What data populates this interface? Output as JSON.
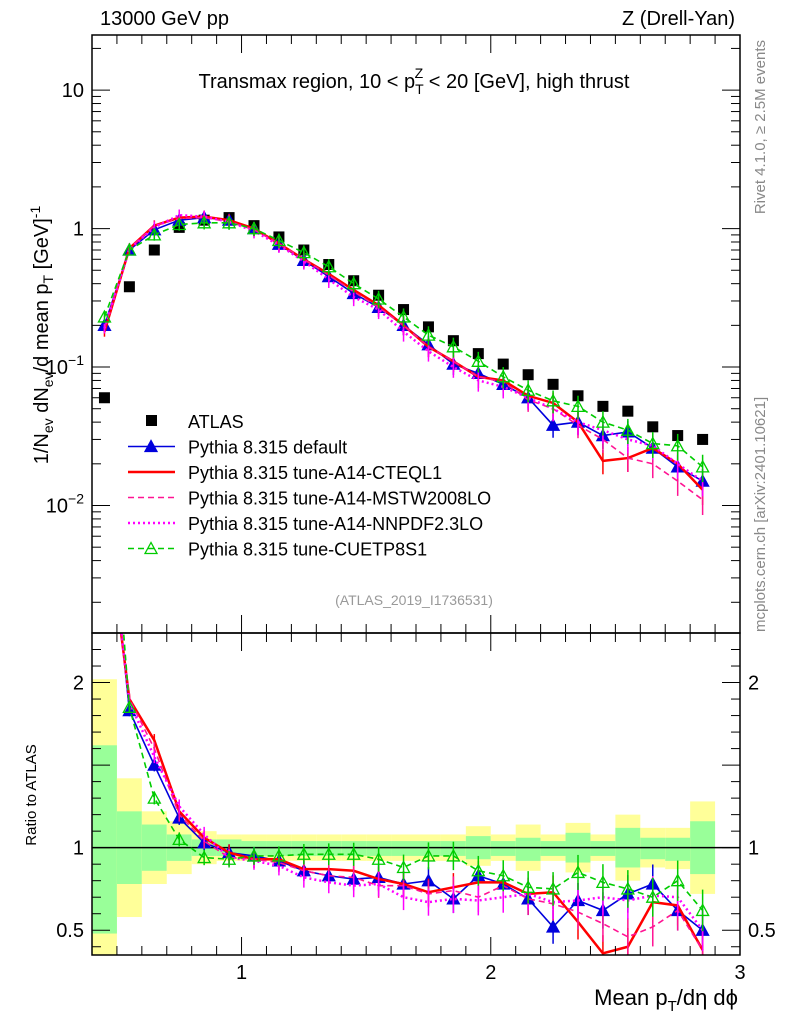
{
  "header": {
    "left": "13000 GeV pp",
    "right": "Z (Drell-Yan)"
  },
  "side_labels": {
    "rivet": "Rivet 4.1.0, ≥ 2.5M events",
    "mcplots": "mcplots.cern.ch [arXiv:2401.10621]"
  },
  "chart_data": [
    {
      "type": "line",
      "panel": "main",
      "title": "Transmax region, 10 < p_T^Z < 20 [GeV], high thrust",
      "ylabel": "1/N_ev dN_ev/d mean p_T [GeV]^-1",
      "xlabel": "",
      "yscale": "log",
      "ylim": [
        0.0012,
        25
      ],
      "xlim": [
        0.4,
        3.0
      ],
      "yticks": [
        {
          "v": 0.01,
          "label": "10^-2"
        },
        {
          "v": 0.1,
          "label": "10^-1"
        },
        {
          "v": 1,
          "label": "1"
        },
        {
          "v": 10,
          "label": "10"
        }
      ],
      "analysis_tag": "(ATLAS_2019_I1736531)",
      "legend_position": "bottom-left",
      "x": [
        0.45,
        0.55,
        0.65,
        0.75,
        0.85,
        0.95,
        1.05,
        1.15,
        1.25,
        1.35,
        1.45,
        1.55,
        1.65,
        1.75,
        1.85,
        1.95,
        2.05,
        2.15,
        2.25,
        2.35,
        2.45,
        2.55,
        2.65,
        2.75,
        2.85
      ],
      "series": [
        {
          "name": "ATLAS",
          "color": "#000000",
          "style": "square",
          "values": [
            0.06,
            0.38,
            0.7,
            1.02,
            1.15,
            1.2,
            1.05,
            0.87,
            0.7,
            0.55,
            0.42,
            0.33,
            0.26,
            0.195,
            0.155,
            0.125,
            0.105,
            0.088,
            0.075,
            0.062,
            0.052,
            0.048,
            0.037,
            0.032,
            0.03
          ]
        },
        {
          "name": "Pythia 8.315 default",
          "color": "#0000dd",
          "style": "solid-triangle",
          "values": [
            0.2,
            0.7,
            0.98,
            1.15,
            1.2,
            1.15,
            1.0,
            0.77,
            0.59,
            0.45,
            0.34,
            0.27,
            0.2,
            0.145,
            0.105,
            0.09,
            0.075,
            0.06,
            0.038,
            0.04,
            0.032,
            0.034,
            0.026,
            0.019,
            0.015
          ]
        },
        {
          "name": "Pythia 8.315 tune-A14-CTEQL1",
          "color": "#ff0000",
          "style": "solid",
          "values": [
            0.18,
            0.72,
            1.05,
            1.2,
            1.22,
            1.15,
            1.0,
            0.78,
            0.6,
            0.47,
            0.36,
            0.28,
            0.2,
            0.14,
            0.11,
            0.085,
            0.08,
            0.062,
            0.055,
            0.04,
            0.021,
            0.022,
            0.026,
            0.02,
            0.013
          ]
        },
        {
          "name": "Pythia 8.315 tune-A14-MSTW2008LO",
          "color": "#ff1493",
          "style": "dashed",
          "values": [
            0.19,
            0.72,
            1.05,
            1.18,
            1.2,
            1.12,
            0.98,
            0.78,
            0.6,
            0.46,
            0.35,
            0.27,
            0.2,
            0.14,
            0.11,
            0.085,
            0.078,
            0.058,
            0.05,
            0.038,
            0.03,
            0.022,
            0.02,
            0.015,
            0.011
          ]
        },
        {
          "name": "Pythia 8.315 tune-A14-NNPDF2.3LO",
          "color": "#ff00ff",
          "style": "dotted",
          "values": [
            0.19,
            0.71,
            1.02,
            1.25,
            1.22,
            1.12,
            0.96,
            0.76,
            0.58,
            0.43,
            0.32,
            0.26,
            0.18,
            0.13,
            0.1,
            0.08,
            0.072,
            0.06,
            0.05,
            0.04,
            0.035,
            0.03,
            0.027,
            0.02,
            0.015
          ]
        },
        {
          "name": "Pythia 8.315 tune-CUETP8S1",
          "color": "#00cc00",
          "style": "dashed-open-triangle",
          "values": [
            0.23,
            0.7,
            0.9,
            1.07,
            1.1,
            1.1,
            1.0,
            0.82,
            0.67,
            0.53,
            0.4,
            0.31,
            0.23,
            0.17,
            0.14,
            0.11,
            0.085,
            0.068,
            0.057,
            0.052,
            0.04,
            0.035,
            0.028,
            0.027,
            0.019
          ]
        }
      ]
    },
    {
      "type": "line",
      "panel": "ratio",
      "ylabel": "Ratio to ATLAS",
      "xlabel": "Mean p_T/dη dφ",
      "ylim": [
        0.35,
        2.3
      ],
      "xlim": [
        0.4,
        3.0
      ],
      "yticks": [
        {
          "v": 0.5,
          "label": "0.5"
        },
        {
          "v": 1,
          "label": "1"
        },
        {
          "v": 2,
          "label": "2"
        }
      ],
      "xticks": [
        {
          "v": 1,
          "label": "1"
        },
        {
          "v": 2,
          "label": "2"
        },
        {
          "v": 3,
          "label": "3"
        }
      ],
      "x": [
        0.45,
        0.55,
        0.65,
        0.75,
        0.85,
        0.95,
        1.05,
        1.15,
        1.25,
        1.35,
        1.45,
        1.55,
        1.65,
        1.75,
        1.85,
        1.95,
        2.05,
        2.15,
        2.25,
        2.35,
        2.45,
        2.55,
        2.65,
        2.75,
        2.85
      ],
      "band_stat": [
        [
          0.48,
          1.62
        ],
        [
          0.78,
          1.22
        ],
        [
          0.86,
          1.14
        ],
        [
          0.92,
          1.08
        ],
        [
          0.95,
          1.05
        ],
        [
          0.95,
          1.05
        ],
        [
          0.95,
          1.04
        ],
        [
          0.95,
          1.04
        ],
        [
          0.95,
          1.04
        ],
        [
          0.95,
          1.04
        ],
        [
          0.95,
          1.04
        ],
        [
          0.95,
          1.04
        ],
        [
          0.95,
          1.04
        ],
        [
          0.95,
          1.04
        ],
        [
          0.95,
          1.04
        ],
        [
          0.93,
          1.07
        ],
        [
          0.95,
          1.04
        ],
        [
          0.92,
          1.06
        ],
        [
          0.95,
          1.04
        ],
        [
          0.91,
          1.09
        ],
        [
          0.95,
          1.04
        ],
        [
          0.88,
          1.12
        ],
        [
          0.93,
          1.06
        ],
        [
          0.92,
          1.06
        ],
        [
          0.84,
          1.16
        ]
      ],
      "band_total": [
        [
          0.28,
          2.02
        ],
        [
          0.58,
          1.42
        ],
        [
          0.78,
          1.22
        ],
        [
          0.84,
          1.16
        ],
        [
          0.9,
          1.1
        ],
        [
          0.92,
          1.08
        ],
        [
          0.92,
          1.08
        ],
        [
          0.92,
          1.08
        ],
        [
          0.92,
          1.08
        ],
        [
          0.92,
          1.08
        ],
        [
          0.92,
          1.08
        ],
        [
          0.92,
          1.08
        ],
        [
          0.92,
          1.08
        ],
        [
          0.92,
          1.08
        ],
        [
          0.92,
          1.08
        ],
        [
          0.89,
          1.13
        ],
        [
          0.92,
          1.08
        ],
        [
          0.86,
          1.14
        ],
        [
          0.92,
          1.08
        ],
        [
          0.85,
          1.15
        ],
        [
          0.92,
          1.08
        ],
        [
          0.8,
          1.2
        ],
        [
          0.88,
          1.12
        ],
        [
          0.87,
          1.12
        ],
        [
          0.72,
          1.28
        ]
      ],
      "series": [
        {
          "name": "Pythia 8.315 default",
          "color": "#0000dd",
          "values": [
            3.3,
            1.83,
            1.5,
            1.18,
            1.03,
            0.97,
            0.95,
            0.92,
            0.86,
            0.83,
            0.81,
            0.82,
            0.78,
            0.8,
            0.69,
            0.83,
            0.78,
            0.69,
            0.52,
            0.68,
            0.62,
            0.72,
            0.78,
            0.62,
            0.5
          ]
        },
        {
          "name": "Pythia 8.315 tune-A14-CTEQL1",
          "color": "#ff0000",
          "values": [
            3.1,
            1.9,
            1.65,
            1.22,
            1.06,
            0.97,
            0.93,
            0.93,
            0.87,
            0.87,
            0.86,
            0.81,
            0.78,
            0.73,
            0.76,
            0.79,
            0.79,
            0.72,
            0.73,
            0.55,
            0.36,
            0.4,
            0.67,
            0.65,
            0.38
          ]
        },
        {
          "name": "Pythia 8.315 tune-A14-MSTW2008LO",
          "color": "#ff1493",
          "values": [
            3.2,
            1.9,
            1.6,
            1.2,
            1.04,
            0.94,
            0.93,
            0.91,
            0.86,
            0.83,
            0.82,
            0.77,
            0.77,
            0.72,
            0.74,
            0.7,
            0.77,
            0.69,
            0.66,
            0.61,
            0.54,
            0.46,
            0.52,
            0.62,
            0.38
          ]
        },
        {
          "name": "Pythia 8.315 tune-A14-NNPDF2.3LO",
          "color": "#ff00ff",
          "values": [
            3.2,
            1.88,
            1.55,
            1.25,
            1.08,
            0.94,
            0.92,
            0.89,
            0.82,
            0.79,
            0.77,
            0.78,
            0.7,
            0.67,
            0.69,
            0.68,
            0.7,
            0.72,
            0.67,
            0.68,
            0.7,
            0.68,
            0.71,
            0.7,
            0.5
          ]
        },
        {
          "name": "Pythia 8.315 tune-CUETP8S1",
          "color": "#00cc00",
          "values": [
            3.8,
            1.85,
            1.3,
            1.05,
            0.94,
            0.93,
            0.95,
            0.95,
            0.96,
            0.96,
            0.96,
            0.93,
            0.88,
            0.95,
            0.95,
            0.86,
            0.83,
            0.76,
            0.75,
            0.85,
            0.79,
            0.75,
            0.7,
            0.8,
            0.62
          ]
        }
      ]
    }
  ]
}
